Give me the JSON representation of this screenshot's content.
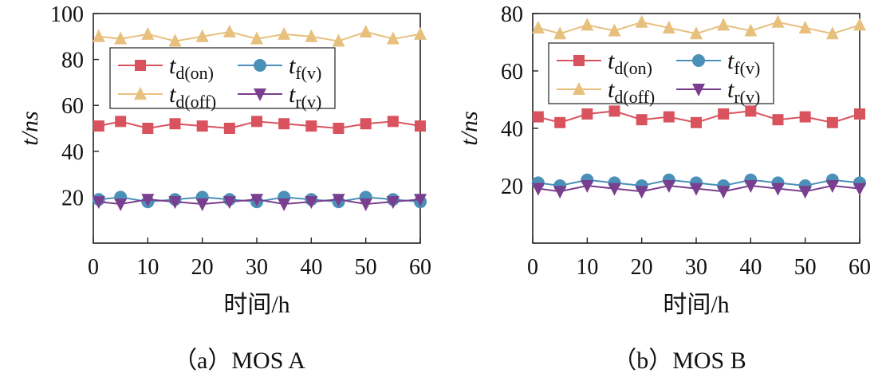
{
  "chart_data": [
    {
      "type": "line",
      "panel": "a",
      "caption": "（a）MOS A",
      "title": "",
      "xlabel": "时间/h",
      "ylabel": "t/ns",
      "xlim": [
        0,
        60
      ],
      "ylim": [
        0,
        100
      ],
      "xticks": [
        0,
        10,
        20,
        30,
        40,
        50,
        60
      ],
      "yticks": [
        20,
        40,
        60,
        80,
        100
      ],
      "x": [
        1,
        5,
        10,
        15,
        20,
        25,
        30,
        35,
        40,
        45,
        50,
        55,
        60
      ],
      "legend_position": "upper-left",
      "series": [
        {
          "name": "t_d(on)",
          "symbol": "t",
          "sub": "d(on)",
          "marker": "square",
          "color": "#D9535F",
          "values": [
            51,
            53,
            50,
            52,
            51,
            50,
            53,
            52,
            51,
            50,
            52,
            53,
            51
          ]
        },
        {
          "name": "t_d(off)",
          "symbol": "t",
          "sub": "d(off)",
          "marker": "triangle-up",
          "color": "#E8C07E",
          "values": [
            90,
            89,
            91,
            88,
            90,
            92,
            89,
            91,
            90,
            88,
            92,
            89,
            91
          ]
        },
        {
          "name": "t_f(v)",
          "symbol": "t",
          "sub": "f(v)",
          "marker": "circle",
          "color": "#4A90B8",
          "values": [
            19,
            20,
            18,
            19,
            20,
            19,
            18,
            20,
            19,
            18,
            20,
            19,
            18
          ]
        },
        {
          "name": "t_r(v)",
          "symbol": "t",
          "sub": "r(v)",
          "marker": "triangle-down",
          "color": "#7A3E8E",
          "values": [
            18,
            17,
            19,
            18,
            17,
            18,
            19,
            17,
            18,
            19,
            17,
            18,
            19
          ]
        }
      ]
    },
    {
      "type": "line",
      "panel": "b",
      "caption": "（b）MOS B",
      "title": "",
      "xlabel": "时间/h",
      "ylabel": "t/ns",
      "xlim": [
        0,
        60
      ],
      "ylim": [
        0,
        80
      ],
      "xticks": [
        0,
        10,
        20,
        30,
        40,
        50,
        60
      ],
      "yticks": [
        20,
        40,
        60,
        80
      ],
      "x": [
        1,
        5,
        10,
        15,
        20,
        25,
        30,
        35,
        40,
        45,
        50,
        55,
        60
      ],
      "legend_position": "upper-left",
      "series": [
        {
          "name": "t_d(on)",
          "symbol": "t",
          "sub": "d(on)",
          "marker": "square",
          "color": "#D9535F",
          "values": [
            44,
            42,
            45,
            46,
            43,
            44,
            42,
            45,
            46,
            43,
            44,
            42,
            45
          ]
        },
        {
          "name": "t_d(off)",
          "symbol": "t",
          "sub": "d(off)",
          "marker": "triangle-up",
          "color": "#E8C07E",
          "values": [
            75,
            73,
            76,
            74,
            77,
            75,
            73,
            76,
            74,
            77,
            75,
            73,
            76
          ]
        },
        {
          "name": "t_f(v)",
          "symbol": "t",
          "sub": "f(v)",
          "marker": "circle",
          "color": "#4A90B8",
          "values": [
            21,
            20,
            22,
            21,
            20,
            22,
            21,
            20,
            22,
            21,
            20,
            22,
            21
          ]
        },
        {
          "name": "t_r(v)",
          "symbol": "t",
          "sub": "r(v)",
          "marker": "triangle-down",
          "color": "#7A3E8E",
          "values": [
            19,
            18,
            20,
            19,
            18,
            20,
            19,
            18,
            20,
            19,
            18,
            20,
            19
          ]
        }
      ]
    }
  ]
}
